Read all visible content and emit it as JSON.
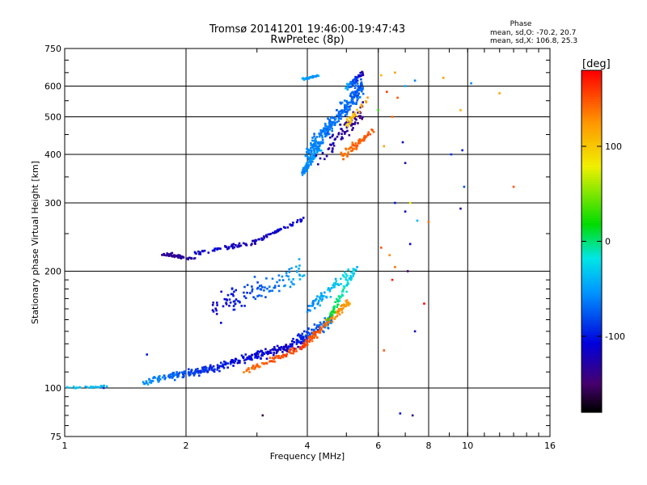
{
  "chart_data": {
    "type": "scatter",
    "title": "Tromsø 20141201 19:46:00-19:47:43",
    "subtitle": "RwPretec (8p)",
    "xlabel": "Frequency [MHz]",
    "ylabel": "Stationary phase Virtual Height [km]",
    "x_scale": "log2",
    "y_scale": "log",
    "xlim": [
      1,
      16
    ],
    "ylim": [
      75,
      750
    ],
    "x_ticks": [
      1,
      2,
      4,
      6,
      8,
      10,
      16
    ],
    "y_ticks": [
      75,
      100,
      200,
      300,
      400,
      500,
      600,
      750
    ],
    "grid": true,
    "phase_box": {
      "title": "Phase",
      "line1": "mean, sd,O: -70.2, 20.7",
      "line2": "mean, sd,X: 106.8, 25.3"
    },
    "colorbar": {
      "label": "[deg]",
      "range": [
        -180,
        180
      ],
      "ticks": [
        100,
        0,
        -100
      ],
      "colormap": "rainbow"
    },
    "traces": [
      {
        "x0": 1.0,
        "x1": 1.3,
        "y0": 100,
        "y1": 101,
        "p0": -35,
        "p1": -40,
        "spread": 0.01,
        "n": 28
      },
      {
        "x0": 1.58,
        "x1": 2.3,
        "y0": 104,
        "y1": 112,
        "p0": -55,
        "p1": -95,
        "spread": 0.03,
        "n": 120
      },
      {
        "x0": 2.3,
        "x1": 3.6,
        "y0": 112,
        "y1": 128,
        "p0": -95,
        "p1": -120,
        "spread": 0.04,
        "n": 150
      },
      {
        "x0": 3.6,
        "x1": 4.6,
        "y0": 128,
        "y1": 150,
        "p0": -110,
        "p1": -60,
        "spread": 0.05,
        "n": 120
      },
      {
        "x0": 2.7,
        "x1": 3.9,
        "y0": 108,
        "y1": 128,
        "p0": 140,
        "p1": 160,
        "spread": 0.02,
        "n": 70
      },
      {
        "x0": 3.9,
        "x1": 5.1,
        "y0": 128,
        "y1": 168,
        "p0": 160,
        "p1": 120,
        "spread": 0.03,
        "n": 110
      },
      {
        "x0": 4.5,
        "x1": 5.3,
        "y0": 150,
        "y1": 205,
        "p0": 20,
        "p1": -40,
        "spread": 0.03,
        "n": 60
      },
      {
        "x0": 2.3,
        "x1": 4.0,
        "y0": 160,
        "y1": 200,
        "p0": -120,
        "p1": -40,
        "spread": 0.12,
        "n": 110
      },
      {
        "x0": 4.0,
        "x1": 5.2,
        "y0": 160,
        "y1": 200,
        "p0": -60,
        "p1": -20,
        "spread": 0.05,
        "n": 70
      },
      {
        "x0": 1.75,
        "x1": 2.1,
        "y0": 222,
        "y1": 215,
        "p0": -140,
        "p1": -130,
        "spread": 0.015,
        "n": 45
      },
      {
        "x0": 2.1,
        "x1": 3.0,
        "y0": 222,
        "y1": 238,
        "p0": -110,
        "p1": -125,
        "spread": 0.02,
        "n": 55
      },
      {
        "x0": 3.0,
        "x1": 3.9,
        "y0": 240,
        "y1": 272,
        "p0": -120,
        "p1": -110,
        "spread": 0.015,
        "n": 45
      },
      {
        "x0": 3.9,
        "x1": 4.3,
        "y0": 360,
        "y1": 420,
        "p0": -60,
        "p1": -50,
        "spread": 0.04,
        "n": 90
      },
      {
        "x0": 4.0,
        "x1": 5.5,
        "y0": 400,
        "y1": 600,
        "p0": -60,
        "p1": -75,
        "spread": 0.08,
        "n": 260
      },
      {
        "x0": 4.2,
        "x1": 5.5,
        "y0": 380,
        "y1": 520,
        "p0": -120,
        "p1": -140,
        "spread": 0.07,
        "n": 70
      },
      {
        "x0": 4.8,
        "x1": 5.8,
        "y0": 390,
        "y1": 460,
        "p0": 140,
        "p1": 150,
        "spread": 0.04,
        "n": 70
      },
      {
        "x0": 5.0,
        "x1": 5.7,
        "y0": 480,
        "y1": 560,
        "p0": 100,
        "p1": 130,
        "spread": 0.04,
        "n": 30
      },
      {
        "x0": 3.9,
        "x1": 4.3,
        "y0": 625,
        "y1": 640,
        "p0": -50,
        "p1": -50,
        "spread": 0.01,
        "n": 25
      },
      {
        "x0": 5.0,
        "x1": 5.5,
        "y0": 590,
        "y1": 650,
        "p0": -40,
        "p1": -130,
        "spread": 0.03,
        "n": 50
      }
    ],
    "points": [
      {
        "x": 7.8,
        "y": 165,
        "p": 180
      },
      {
        "x": 6.4,
        "y": 220,
        "p": 130
      },
      {
        "x": 6.6,
        "y": 205,
        "p": 140
      },
      {
        "x": 7.1,
        "y": 200,
        "p": -150
      },
      {
        "x": 7.4,
        "y": 140,
        "p": -120
      },
      {
        "x": 6.2,
        "y": 125,
        "p": 150
      },
      {
        "x": 7.3,
        "y": 85,
        "p": -140
      },
      {
        "x": 6.8,
        "y": 86,
        "p": -100
      },
      {
        "x": 3.1,
        "y": 85,
        "p": -160
      },
      {
        "x": 12.0,
        "y": 575,
        "p": 120
      },
      {
        "x": 13.0,
        "y": 330,
        "p": 150
      },
      {
        "x": 10.2,
        "y": 610,
        "p": -60
      },
      {
        "x": 9.6,
        "y": 520,
        "p": 110
      },
      {
        "x": 9.7,
        "y": 410,
        "p": -100
      },
      {
        "x": 9.8,
        "y": 330,
        "p": -80
      },
      {
        "x": 9.6,
        "y": 290,
        "p": -130
      },
      {
        "x": 9.1,
        "y": 400,
        "p": -90
      },
      {
        "x": 8.7,
        "y": 630,
        "p": 120
      },
      {
        "x": 7.0,
        "y": 285,
        "p": -120
      },
      {
        "x": 7.5,
        "y": 270,
        "p": -40
      },
      {
        "x": 7.2,
        "y": 300,
        "p": 80
      },
      {
        "x": 6.6,
        "y": 300,
        "p": -100
      },
      {
        "x": 6.2,
        "y": 420,
        "p": 120
      },
      {
        "x": 6.9,
        "y": 430,
        "p": -120
      },
      {
        "x": 7.0,
        "y": 380,
        "p": -130
      },
      {
        "x": 6.5,
        "y": 500,
        "p": 140
      },
      {
        "x": 6.3,
        "y": 580,
        "p": 160
      },
      {
        "x": 7.0,
        "y": 600,
        "p": -40
      },
      {
        "x": 7.4,
        "y": 620,
        "p": -60
      },
      {
        "x": 8.0,
        "y": 268,
        "p": 140
      },
      {
        "x": 6.1,
        "y": 230,
        "p": 150
      },
      {
        "x": 6.7,
        "y": 560,
        "p": 150
      },
      {
        "x": 6.0,
        "y": 520,
        "p": 30
      },
      {
        "x": 6.1,
        "y": 640,
        "p": 110
      },
      {
        "x": 6.6,
        "y": 650,
        "p": 120
      },
      {
        "x": 7.2,
        "y": 235,
        "p": -110
      },
      {
        "x": 6.5,
        "y": 190,
        "p": 170
      },
      {
        "x": 1.6,
        "y": 122,
        "p": -100
      },
      {
        "x": 1.25,
        "y": 100,
        "p": -90
      }
    ]
  }
}
